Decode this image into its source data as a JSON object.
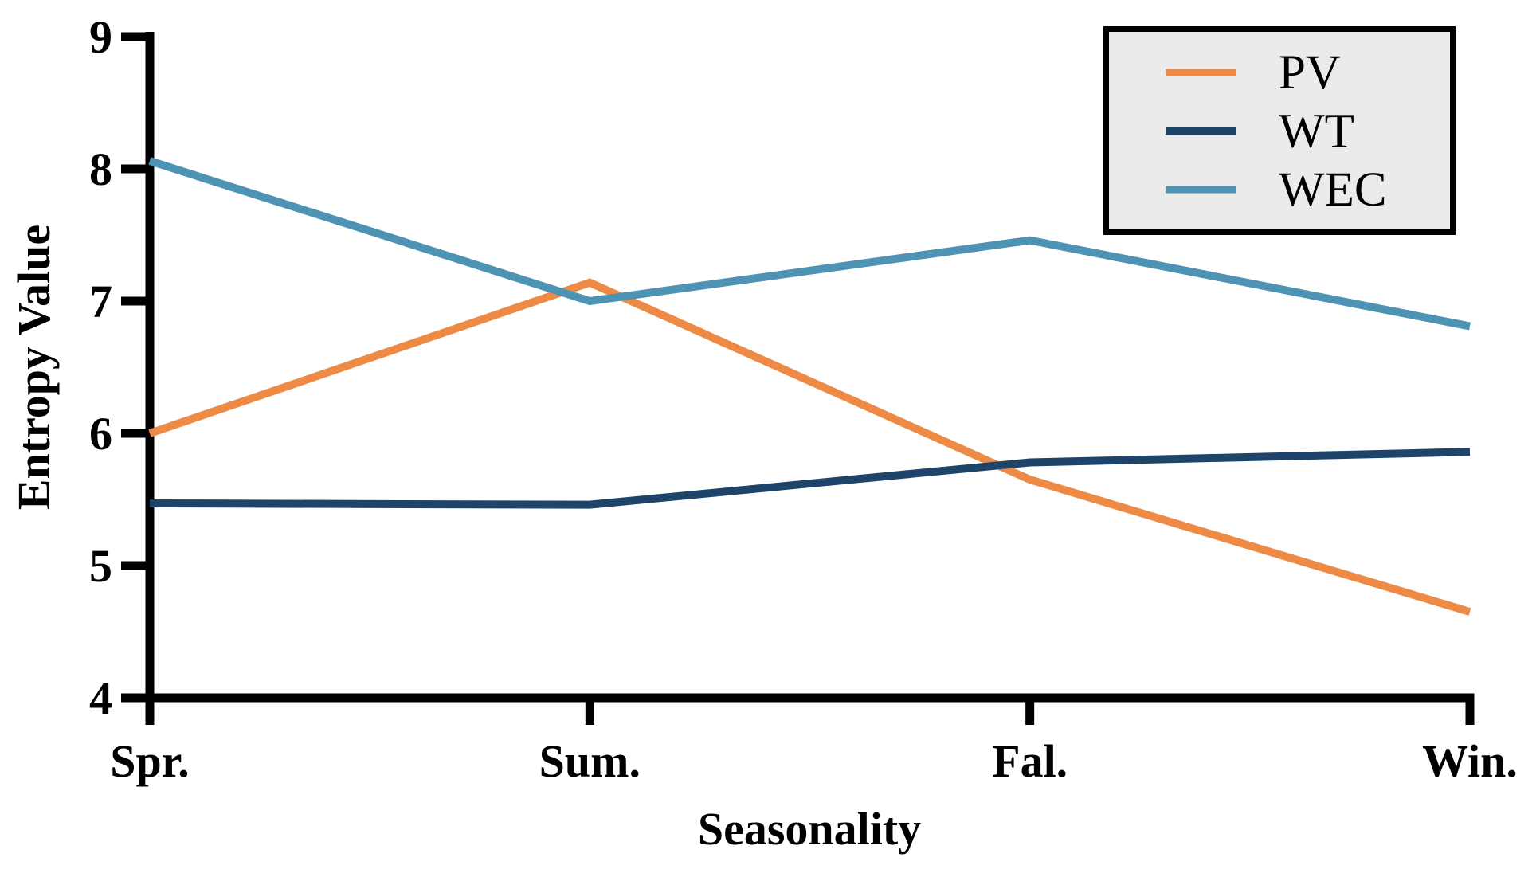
{
  "chart_data": {
    "type": "line",
    "title": "",
    "xlabel": "Seasonality",
    "ylabel": "Entropy Value",
    "categories": [
      "Spr.",
      "Sum.",
      "Fal.",
      "Win."
    ],
    "y_tick_labels": [
      "4",
      "5",
      "6",
      "7",
      "8",
      "9"
    ],
    "y_ticks": [
      4,
      5,
      6,
      7,
      8,
      9
    ],
    "ylim": [
      4,
      9
    ],
    "grid": false,
    "legend_position": "top-right",
    "series": [
      {
        "name": "PV",
        "color": "#ED8B46",
        "values": [
          6.0,
          7.14,
          5.65,
          4.65
        ]
      },
      {
        "name": "WT",
        "color": "#1E4569",
        "values": [
          5.47,
          5.46,
          5.78,
          5.86
        ]
      },
      {
        "name": "WEC",
        "color": "#4E93B4",
        "values": [
          8.06,
          7.0,
          7.46,
          6.81
        ]
      }
    ]
  },
  "colors": {
    "axis": "#000000",
    "legend_background": "#EBEBEB",
    "legend_border": "#000000",
    "background": "#FFFFFF"
  }
}
